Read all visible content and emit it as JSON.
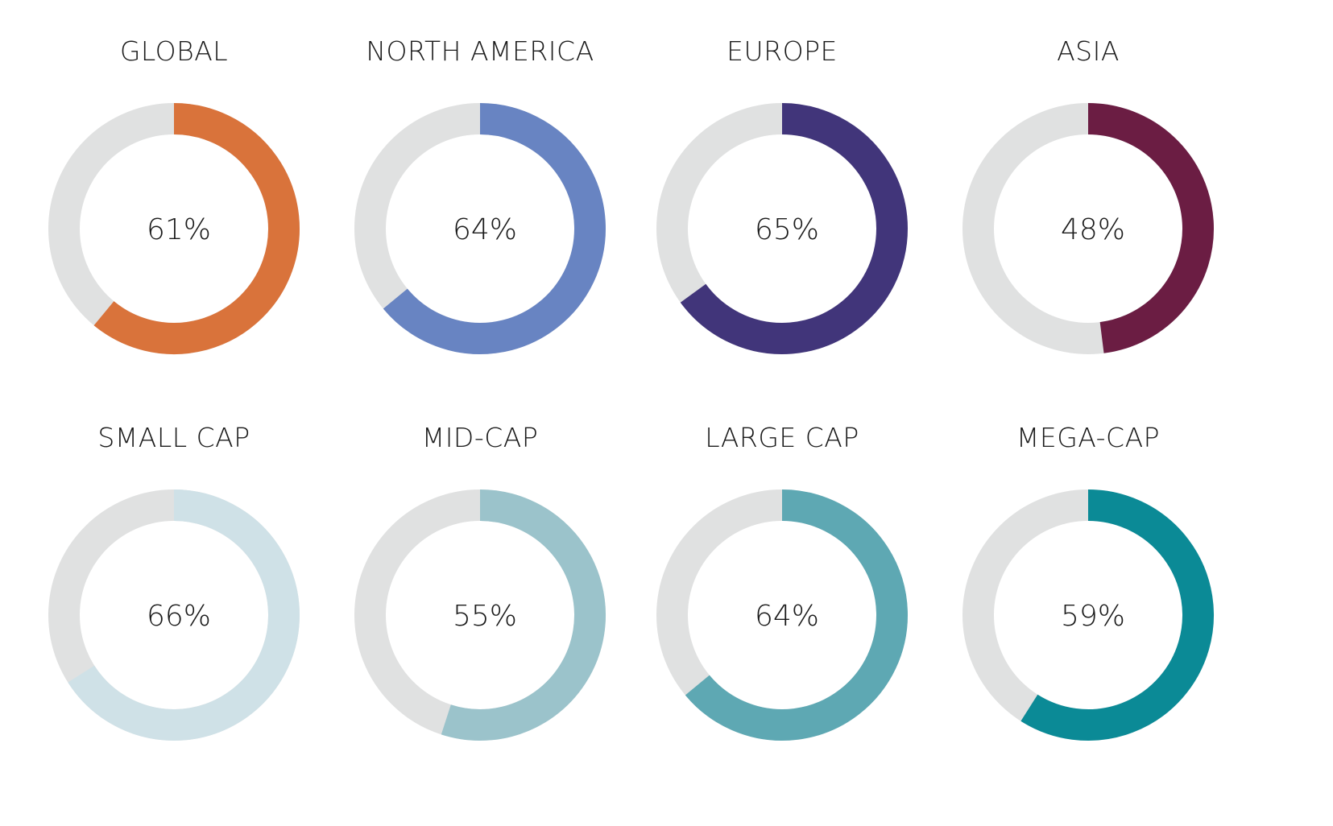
{
  "chart_data": [
    {
      "type": "pie",
      "title": "GLOBAL",
      "value": 61,
      "label": "61%",
      "color": "#d9733b"
    },
    {
      "type": "pie",
      "title": "NORTH AMERICA",
      "value": 64,
      "label": "64%",
      "color": "#6884c2"
    },
    {
      "type": "pie",
      "title": "EUROPE",
      "value": 65,
      "label": "65%",
      "color": "#41357a"
    },
    {
      "type": "pie",
      "title": "ASIA",
      "value": 48,
      "label": "48%",
      "color": "#6b1d43"
    },
    {
      "type": "pie",
      "title": "SMALL CAP",
      "value": 66,
      "label": "66%",
      "color": "#cfe1e7"
    },
    {
      "type": "pie",
      "title": "MID-CAP",
      "value": 55,
      "label": "55%",
      "color": "#9bc3cb"
    },
    {
      "type": "pie",
      "title": "LARGE CAP",
      "value": 64,
      "label": "64%",
      "color": "#5ea8b3"
    },
    {
      "type": "pie",
      "title": "MEGA-CAP",
      "value": 59,
      "label": "59%",
      "color": "#0b8a96"
    }
  ],
  "track_color": "#e0e1e1"
}
